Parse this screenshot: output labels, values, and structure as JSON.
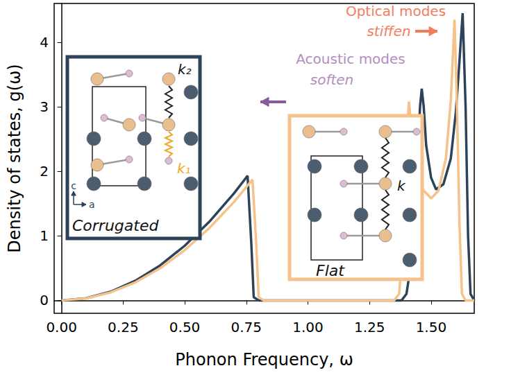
{
  "chart_data": {
    "type": "line",
    "xlabel": "Phonon Frequency, ω",
    "ylabel": "Density of states, g(ω)",
    "xlim": [
      -0.03,
      1.675
    ],
    "ylim": [
      -0.2,
      4.6
    ],
    "xticks": [
      {
        "value": 0,
        "label": "0.00"
      },
      {
        "value": 0.25,
        "label": "0.25"
      },
      {
        "value": 0.5,
        "label": "0.50"
      },
      {
        "value": 0.75,
        "label": "0.75"
      },
      {
        "value": 1,
        "label": "1.00"
      },
      {
        "value": 1.25,
        "label": "1.25"
      },
      {
        "value": 1.5,
        "label": "1.50"
      }
    ],
    "yticks": [
      0,
      1,
      2,
      3,
      4
    ],
    "grid": false,
    "series": [
      {
        "color": "#2c4359",
        "x": [
          0,
          0.1,
          0.2,
          0.3,
          0.4,
          0.5,
          0.6,
          0.7,
          0.755,
          0.77,
          0.78,
          0.8,
          1.0,
          1.2,
          1.38,
          1.4,
          1.42,
          1.44,
          1.455,
          1.462,
          1.47,
          1.48,
          1.5,
          1.52,
          1.55,
          1.58,
          1.6,
          1.615,
          1.628,
          1.64,
          1.65,
          1.66,
          1.675
        ],
        "values": [
          0,
          0.034,
          0.135,
          0.305,
          0.542,
          0.847,
          1.219,
          1.659,
          1.93,
          0.9,
          0.05,
          0,
          0,
          0,
          0,
          0.1,
          0.6,
          1.8,
          3.0,
          3.28,
          3.0,
          2.4,
          1.9,
          1.72,
          1.8,
          2.2,
          2.9,
          3.7,
          4.45,
          3.0,
          1.0,
          0.1,
          0
        ]
      },
      {
        "color": "#f6c28b",
        "x": [
          0,
          0.1,
          0.2,
          0.3,
          0.4,
          0.5,
          0.6,
          0.7,
          0.775,
          0.79,
          0.8,
          0.82,
          1.0,
          1.2,
          1.35,
          1.37,
          1.385,
          1.395,
          1.405,
          1.41,
          1.42,
          1.44,
          1.47,
          1.5,
          1.53,
          1.56,
          1.58,
          1.595,
          1.605,
          1.615,
          1.625,
          1.64,
          1.675
        ],
        "values": [
          0,
          0.031,
          0.125,
          0.28,
          0.498,
          0.778,
          1.121,
          1.525,
          1.87,
          0.9,
          0.05,
          0,
          0,
          0,
          0,
          0.1,
          0.8,
          1.8,
          2.8,
          3.08,
          2.7,
          2.0,
          1.7,
          1.58,
          1.7,
          2.2,
          3.1,
          4.35,
          3.0,
          1.2,
          0.1,
          0,
          0
        ]
      }
    ],
    "annotations": [
      {
        "text": "Acoustic modes",
        "color": "#b48cbf"
      },
      {
        "text": "soften",
        "color": "#b48cbf"
      },
      {
        "text": "Optical modes",
        "color": "#f47c5c"
      },
      {
        "text": "stiffen",
        "color": "#f47c5c"
      }
    ],
    "insets": [
      {
        "label": "Corrugated",
        "springs": [
          "k₂",
          "k₁"
        ],
        "axes": [
          "c",
          "a"
        ]
      },
      {
        "label": "Flat",
        "springs": [
          "k"
        ]
      }
    ]
  }
}
